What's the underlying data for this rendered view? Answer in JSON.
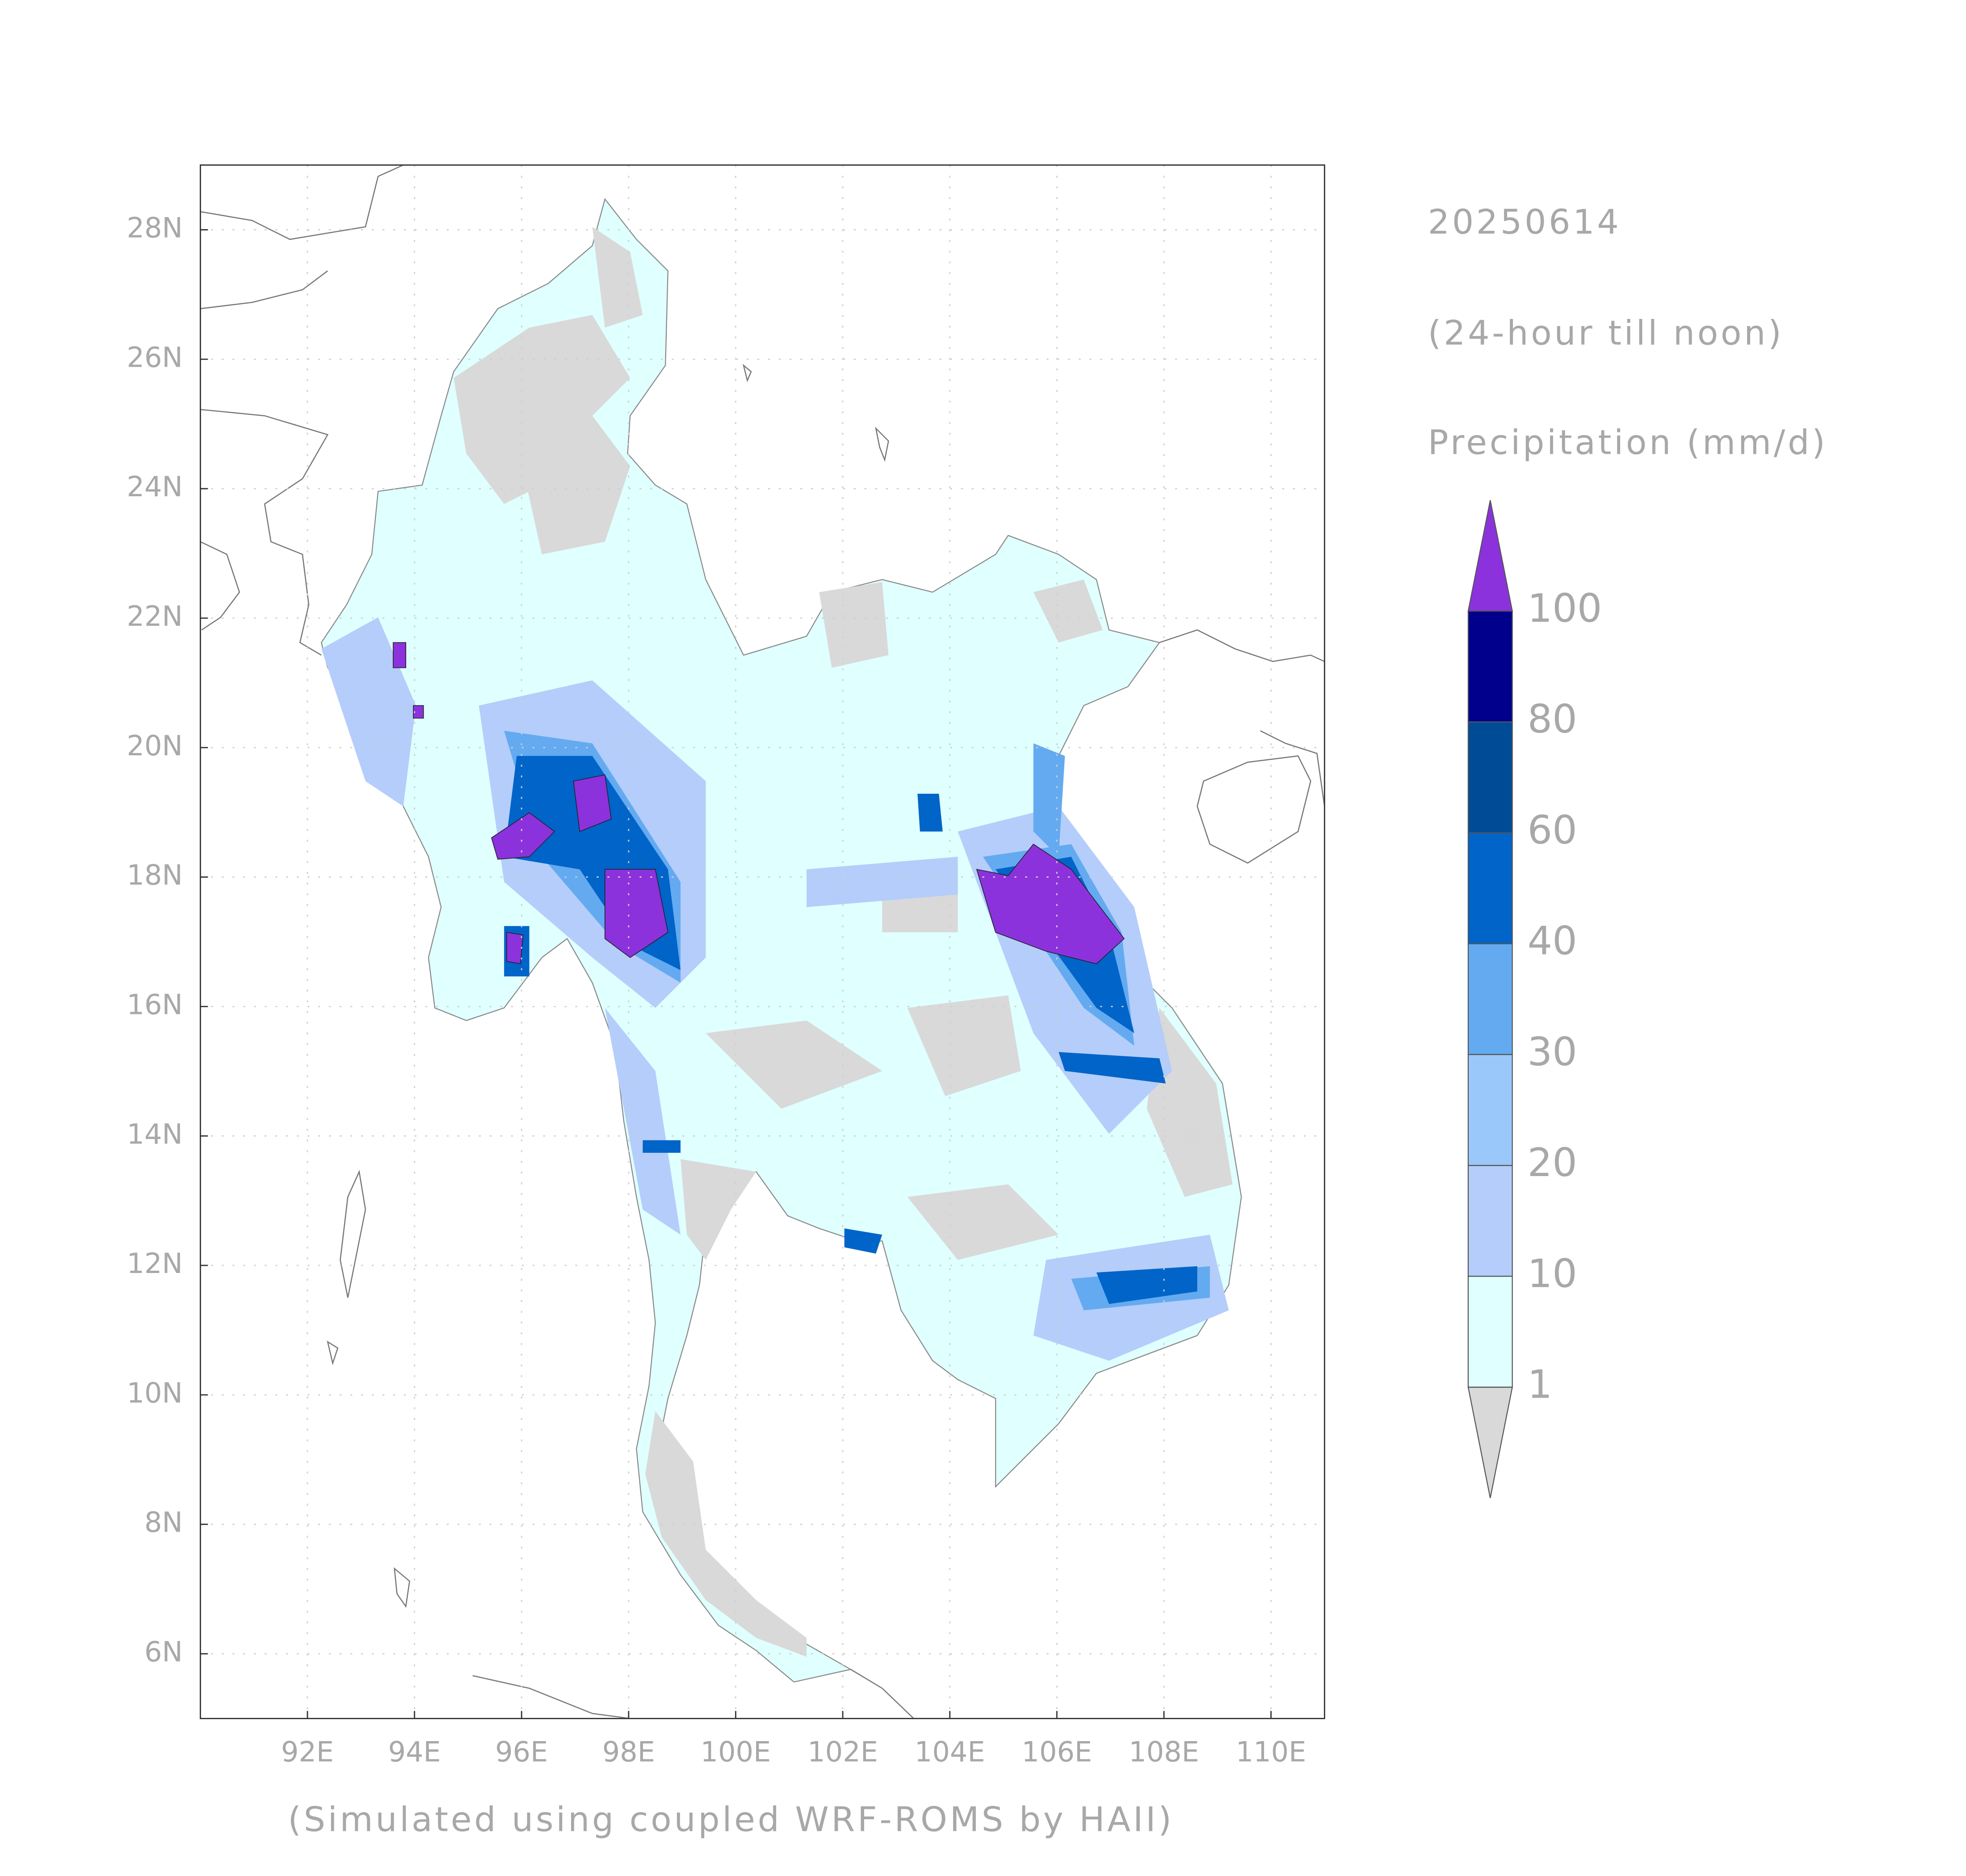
{
  "header": {
    "date": "20250614",
    "period": "(24-hour till noon)",
    "variable": "Precipitation (mm/d)"
  },
  "credit": "(Simulated using coupled WRF-ROMS by HAII)",
  "map": {
    "xlim": [
      90,
      111
    ],
    "ylim": [
      5,
      29
    ],
    "xticks": [
      {
        "value": 92,
        "label": "92E"
      },
      {
        "value": 94,
        "label": "94E"
      },
      {
        "value": 96,
        "label": "96E"
      },
      {
        "value": 98,
        "label": "98E"
      },
      {
        "value": 100,
        "label": "100E"
      },
      {
        "value": 102,
        "label": "102E"
      },
      {
        "value": 104,
        "label": "104E"
      },
      {
        "value": 106,
        "label": "106E"
      },
      {
        "value": 108,
        "label": "108E"
      },
      {
        "value": 110,
        "label": "110E"
      }
    ],
    "yticks": [
      {
        "value": 6,
        "label": "6N"
      },
      {
        "value": 8,
        "label": "8N"
      },
      {
        "value": 10,
        "label": "10N"
      },
      {
        "value": 12,
        "label": "12N"
      },
      {
        "value": 14,
        "label": "14N"
      },
      {
        "value": 16,
        "label": "16N"
      },
      {
        "value": 18,
        "label": "18N"
      },
      {
        "value": 20,
        "label": "20N"
      },
      {
        "value": 22,
        "label": "22N"
      },
      {
        "value": 24,
        "label": "24N"
      },
      {
        "value": 26,
        "label": "26N"
      },
      {
        "value": 28,
        "label": "28N"
      }
    ],
    "grid": true
  },
  "colorbar": {
    "levels": [
      1,
      10,
      20,
      30,
      40,
      60,
      80,
      100
    ],
    "colors": [
      "#d9d9d9",
      "#e0ffff",
      "#b4cdfa",
      "#9bc8fb",
      "#64aaf0",
      "#0064c8",
      "#004b96",
      "#00008c",
      "#8c32dc"
    ]
  }
}
